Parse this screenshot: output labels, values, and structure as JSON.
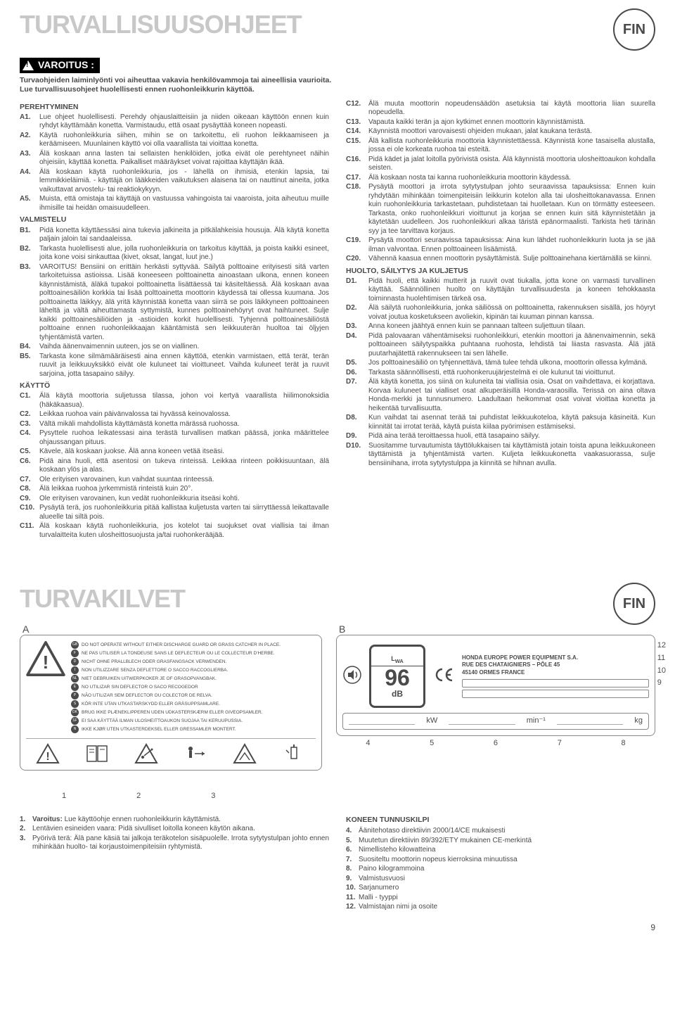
{
  "badge": "FIN",
  "section1": {
    "title": "TURVALLISUUSOHJEET",
    "warning_label": "VAROITUS :",
    "intro_line1": "Turvaohjeiden laiminlyönti voi aiheuttaa vakavia henkilövammoja tai aineellisia vaurioita.",
    "intro_line2": "Lue turvallisuusohjeet huolellisesti ennen ruohonleikkurin käyttöä.",
    "groups_left": [
      {
        "head": "PEREHTYMINEN",
        "items": [
          {
            "n": "A1.",
            "t": "Lue ohjeet huolellisesti. Perehdy ohjauslaitteisiin ja niiden oikeaan käyttöön ennen kuin ryhdyt käyttämään konetta. Varmistaudu, että osaat pysäyttää koneen nopeasti."
          },
          {
            "n": "A2.",
            "t": "Käytä ruohonleikkuria siihen, mihin se on tarkoitettu, eli ruohon leikkaamiseen ja keräämiseen. Muunlainen käyttö voi olla vaarallista tai vioittaa konetta."
          },
          {
            "n": "A3.",
            "t": "Älä koskaan anna lasten tai sellaisten henkilöiden, jotka eivät ole perehtyneet näihin ohjeisiin, käyttää konetta. Paikalliset määräykset voivat rajoittaa käyttäjän ikää."
          },
          {
            "n": "A4.",
            "t": "Älä koskaan käytä ruohonleikkuria, jos - lähellä on ihmisiä, etenkin lapsia, tai lemmikkieläimiä. - käyttäjä on lääkkeiden vaikutuksen alaisena tai on nauttinut aineita, jotka vaikuttavat arvostelu- tai reaktiokykyyn."
          },
          {
            "n": "A5.",
            "t": "Muista, että omistaja tai käyttäjä on vastuussa vahingoista tai vaaroista, joita aiheutuu muille ihmisille tai heidän omaisuudelleen."
          }
        ]
      },
      {
        "head": "VALMISTELU",
        "items": [
          {
            "n": "B1.",
            "t": "Pidä konetta käyttäessäsi aina tukevia jalkineita ja pitkälahkeisia housuja. Älä käytä konetta paljain jaloin tai sandaaleissa."
          },
          {
            "n": "B2.",
            "t": "Tarkasta huolellisesti alue, jolla ruohonleikkuria on tarkoitus käyttää, ja poista kaikki esineet, joita kone voisi sinkauttaa (kivet, oksat, langat, luut jne.)"
          },
          {
            "n": "B3.",
            "t": "VAROITUS! Bensiini on erittäin herkästi syttyvää.\nSäilytä polttoaine erityisesti sitä varten tarkoitetuissa astioissa.\nLisää koneeseen polttoainetta ainoastaan ulkona, ennen koneen käynnistämistä, äläkä tupakoi polttoainetta lisättäessä tai käsiteltäessä.\nÄlä koskaan avaa polttoainesäiliön korkkia tai lisää polttoainetta moottorin käydessä tai ollessa kuumana.\nJos polttoainetta läikkyy, älä yritä käynnistää konetta vaan siirrä se pois läikkyneen polttoaineen läheltä ja vältä aiheuttamasta syttymistä, kunnes polttoainehöyryt ovat haihtuneet.\nSulje kaikki polttoainesäiliöiden ja -astioiden korkit huolellisesti.\nTyhjennä polttoainesäiliöstä polttoaine ennen ruohonleikkaajan kääntämistä sen leikkuuterän huoltoa tai öljyjen tyhjentämistä varten."
          },
          {
            "n": "B4.",
            "t": "Vaihda äänenvaimennin uuteen, jos se on viallinen."
          },
          {
            "n": "B5.",
            "t": "Tarkasta kone silmämääräisesti aina ennen käyttöä, etenkin varmistaen, että terät, terän ruuvit ja leikkuuyksikkö eivät ole kuluneet tai vioittuneet. Vaihda kuluneet terät ja ruuvit sarjoina, jotta tasapaino säilyy."
          }
        ]
      },
      {
        "head": "KÄYTTÖ",
        "items": [
          {
            "n": "C1.",
            "t": "Älä käytä moottoria suljetussa tilassa, johon voi kertyä vaarallista hiilimonoksidia (häkäkaasua)."
          },
          {
            "n": "C2.",
            "t": "Leikkaa ruohoa vain päivänvalossa tai hyvässä keinovalossa."
          },
          {
            "n": "C3.",
            "t": "Vältä mikäli mahdollista käyttämästä konetta märässä ruohossa."
          },
          {
            "n": "C4.",
            "t": "Pysyttele ruohoa leikatessasi aina terästä turvallisen matkan päässä, jonka määrittelee ohjaussangan pituus."
          },
          {
            "n": "C5.",
            "t": "Kävele, älä koskaan juokse. Älä anna koneen vetää itseäsi."
          },
          {
            "n": "C6.",
            "t": "Pidä aina huoli, että asentosi on tukeva rinteissä. Leikkaa rinteen poikkisuuntaan, älä koskaan ylös ja alas."
          },
          {
            "n": "C7.",
            "t": "Ole erityisen varovainen, kun vaihdat suuntaa rinteessä."
          },
          {
            "n": "C8.",
            "t": "Älä leikkaa ruohoa jyrkemmistä rinteistä kuin 20°."
          },
          {
            "n": "C9.",
            "t": "Ole erityisen varovainen, kun vedät ruohonleikkuria itseäsi kohti."
          },
          {
            "n": "C10.",
            "t": "Pysäytä terä, jos ruohonleikkuria pitää kallistaa kuljetusta varten tai siirryttäessä leikattavalle alueelle tai siltä pois."
          },
          {
            "n": "C11.",
            "t": "Älä koskaan käytä ruohonleikkuria, jos kotelot tai suojukset ovat viallisia tai ilman turvalaitteita kuten ulosheittosuojusta ja/tai ruohonkerääjää."
          }
        ]
      }
    ],
    "groups_right": [
      {
        "head": "",
        "items": [
          {
            "n": "C12.",
            "t": "Älä muuta moottorin nopeudensäädön asetuksia tai käytä moottoria liian suurella nopeudella."
          },
          {
            "n": "C13.",
            "t": "Vapauta kaikki terän ja ajon kytkimet ennen moottorin käynnistämistä."
          },
          {
            "n": "C14.",
            "t": "Käynnistä moottori varovaisesti ohjeiden mukaan, jalat kaukana terästä."
          },
          {
            "n": "C15.",
            "t": "Älä kallista ruohonleikkuria moottoria käynnistettäessä. Käynnistä kone tasaisella alustalla, jossa ei ole korkeata ruohoa tai esteitä."
          },
          {
            "n": "C16.",
            "t": "Pidä kädet ja jalat loitolla pyörivistä osista. Älä käynnistä moottoria ulosheittoaukon kohdalla seisten."
          },
          {
            "n": "C17.",
            "t": "Älä koskaan nosta tai kanna ruohonleikkuria moottorin käydessä."
          },
          {
            "n": "C18.",
            "t": "Pysäytä moottori ja irrota sytytystulpan johto seuraavissa tapauksissa:\nEnnen kuin ryhdytään mihinkään toimenpiteisiin leikkurin kotelon alla tai ulosheittokanavassa.\nEnnen kuin ruohonleikkuria tarkastetaan, puhdistetaan tai huolletaan.\nKun on törmätty esteeseen. Tarkasta, onko ruohonleikkuri vioittunut ja korjaa se ennen kuin sitä käynnistetään ja käytetään uudelleen.\nJos ruohonleikkuri alkaa täristä epänormaalisti. Tarkista heti tärinän syy ja tee tarvittava korjaus."
          },
          {
            "n": "C19.",
            "t": "Pysäytä moottori seuraavissa tapauksissa:\nAina kun lähdet ruohonleikkurin luota ja se jää ilman valvontaa.\nEnnen polttoaineen lisäämistä."
          },
          {
            "n": "C20.",
            "t": "Vähennä kaasua ennen moottorin pysäyttämistä. Sulje polttoainehana kiertämällä se kiinni."
          }
        ]
      },
      {
        "head": "HUOLTO, SÄILYTYS JA KULJETUS",
        "items": [
          {
            "n": "D1.",
            "t": "Pidä huoli, että kaikki mutterit ja ruuvit ovat tiukalla, jotta kone on varmasti turvallinen käyttää. Säännöllinen huolto on käyttäjän turvallisuudesta ja koneen tehokkaasta toiminnasta huolehtimisen tärkeä osa."
          },
          {
            "n": "D2.",
            "t": "Älä säilytä ruohonleikkuria, jonka säiliössä on polttoainetta, rakennuksen sisällä, jos höyryt voivat joutua kosketukseen avoliekin, kipinän tai kuuman pinnan kanssa."
          },
          {
            "n": "D3.",
            "t": "Anna koneen jäähtyä ennen kuin se pannaan talteen suljettuun tilaan."
          },
          {
            "n": "D4.",
            "t": "Pidä palovaaran vähentämiseksi ruohonleikkuri, etenkin moottori ja äänenvaimennin, sekä polttoaineen säilytyspaikka puhtaana ruohosta, lehdistä tai liiasta rasvasta. Älä jätä puutarhajätettä rakennukseen tai sen lähelle."
          },
          {
            "n": "D5.",
            "t": "Jos polttoainesäiliö on tyhjennettävä, tämä tulee tehdä ulkona, moottorin ollessa kylmänä."
          },
          {
            "n": "D6.",
            "t": "Tarkasta säännöllisesti, että ruohonkeruujärjestelmä ei ole kulunut tai vioittunut."
          },
          {
            "n": "D7.",
            "t": "Älä käytä konetta, jos siinä on kuluneita tai viallisia osia. Osat on vaihdettava, ei korjattava. Korvaa kuluneet tai vialliset osat alkuperäisillä Honda-varaosilla. Terissä on aina oltava Honda-merkki ja tunnusnumero. Laadultaan heikommat osat voivat vioittaa konetta ja heikentää turvallisuutta."
          },
          {
            "n": "D8.",
            "t": "Kun vaihdat tai asennat terää tai puhdistat leikkuukoteloa, käytä paksuja käsineitä. Kun kiinnität tai irrotat terää, käytä puista kiilaa pyörimisen estämiseksi."
          },
          {
            "n": "D9.",
            "t": "Pidä aina terää teroittaessa huoli, että tasapaino säilyy."
          },
          {
            "n": "D10.",
            "t": "Suositamme turvautumista täyttölukkaisen tai käyttämistä jotain toista apuna leikkuukoneen täyttämistä ja tyhjentämistä varten.\nKuljeta leikkuukonetta vaakasuorassa, sulje bensiinihana, irrota sytytystulppa ja kiinnitä se hihnan avulla."
          }
        ]
      }
    ]
  },
  "section2": {
    "title": "TURVAKILVET",
    "label_a": {
      "letter": "A",
      "langs": [
        {
          "c": "GB",
          "t": "DO NOT OPERATE WITHOUT EITHER DISCHARGE GUARD OR GRASS CATCHER IN PLACE."
        },
        {
          "c": "F",
          "t": "NE PAS UTILISER LA TONDEUSE SANS LE DEFLECTEUR OU LE COLLECTEUR D'HERBE."
        },
        {
          "c": "D",
          "t": "NICHT OHNE PRALLBLECH ODER GRASFANGSACK VERWENDEN."
        },
        {
          "c": "I",
          "t": "NON UTILIZZARE SENZA DEFLETTORE O SACCO RACCOGLIERBA."
        },
        {
          "c": "NL",
          "t": "NIET GEBRUIKEN UITWERPKOKER JE OF GRASOPVANGBAK."
        },
        {
          "c": "E",
          "t": "NO UTILIZAR SIN DEFLECTOR O SACO RECOGEDOR"
        },
        {
          "c": "P",
          "t": "NÃO UTILIZAR SEM DEFLECTOR OU COLECTOR DE RELVA."
        },
        {
          "c": "S",
          "t": "KÖR INTE UTAN UTKASTARSKYDD ELLER GRÄSUPPSAMLARE."
        },
        {
          "c": "DK",
          "t": "BRUG IKKE PLÆNEKLIPPEREN UDEN UDKASTERSKÆRM ELLER GIVEOPSAMLER."
        },
        {
          "c": "SF",
          "t": "EI SAA KÄYTTÄÄ ILMAN ULOSHEITTOAUKON SUOJAA TAI KERUUPUSSIA."
        },
        {
          "c": "N",
          "t": "IKKE KJØR UTEN UTKASTERDEKSEL ELLER GRESSAMLER MONTERT."
        }
      ],
      "bottom_nums": [
        "1",
        "2",
        "3"
      ]
    },
    "label_b": {
      "letter": "B",
      "noise": {
        "lwa": "L_WA",
        "value": "96",
        "unit": "dB"
      },
      "mfg_lines": [
        "HONDA EUROPE POWER EQUIPMENT S.A.",
        "RUE DES CHATAIGNIERS – PÔLE 45",
        "45140 ORMES FRANCE"
      ],
      "spec_units": [
        "kW",
        "min⁻¹",
        "kg"
      ],
      "side_nums": [
        "12",
        "11",
        "10",
        "9"
      ],
      "bottom_nums": [
        "4",
        "5",
        "6",
        "7",
        "8"
      ]
    },
    "footer_left": [
      {
        "n": "1.",
        "bold": "Varoitus:",
        "t": " Lue käyttöohje ennen ruohonleikkurin käyttämistä."
      },
      {
        "n": "2.",
        "t": "Lentävien esineiden vaara: Pidä sivulliset loitolla koneen käytön aikana."
      },
      {
        "n": "3.",
        "t": "Pyörivä terä: Älä pane käsiä tai jalkoja teräkotelon sisäpuolelle. Irrota sytytystulpan johto ennen mihinkään huolto- tai korjaustoimenpiteisiin ryhtymistä."
      }
    ],
    "footer_right_head": "KONEEN TUNNUSKILPI",
    "footer_right": [
      {
        "n": "4.",
        "t": "Äänitehotaso direktiivin 2000/14/CE mukaisesti"
      },
      {
        "n": "5.",
        "t": "Muutetun direktiivin 89/392/ETY mukainen CE-merkintä"
      },
      {
        "n": "6.",
        "t": "Nimellisteho kilowatteina"
      },
      {
        "n": "7.",
        "t": "Suositeltu moottorin nopeus kierroksina minuutissa"
      },
      {
        "n": "8.",
        "t": "Paino kilogrammoina"
      },
      {
        "n": "9.",
        "t": "Valmistusvuosi"
      },
      {
        "n": "10.",
        "t": "Sarjanumero"
      },
      {
        "n": "11.",
        "t": "Malli - tyyppi"
      },
      {
        "n": "12.",
        "t": "Valmistajan nimi ja osoite"
      }
    ]
  },
  "page_number": "9"
}
